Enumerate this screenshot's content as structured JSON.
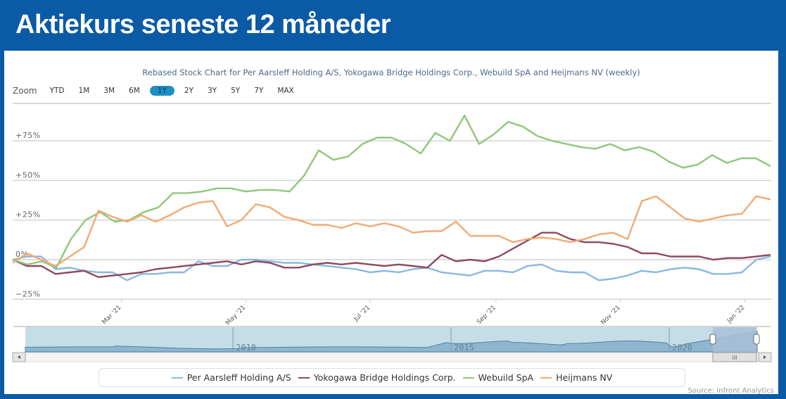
{
  "header": {
    "title": "Aktiekurs seneste 12 måneder"
  },
  "zoom": {
    "label": "Zoom",
    "buttons": [
      "YTD",
      "1M",
      "3M",
      "6M",
      "1Y",
      "2Y",
      "3Y",
      "5Y",
      "7Y",
      "MAX"
    ],
    "active": "1Y"
  },
  "colors": {
    "brand": "#0a5aa6",
    "active_zoom": "#1e8fbf",
    "per_aarsleff": "#8ab8e0",
    "yokogawa": "#8e4a5e",
    "webuild": "#8fc77a",
    "heijmans": "#f2aa73"
  },
  "chart_data": {
    "type": "line",
    "title": "Rebased Stock Chart for Per Aarsleff Holding A/S, Yokogawa Bridge Holdings Corp., Webuild SpA and Heijmans NV (weekly)",
    "xlabel": "",
    "ylabel": "",
    "ylim": [
      -25,
      100
    ],
    "yticks": [
      -25,
      0,
      25,
      50,
      75
    ],
    "ytick_labels": [
      "−25%",
      "0%",
      "+25%",
      "+50%",
      "+75%"
    ],
    "xtick_labels": [
      "Mar '21",
      "May '21",
      "Jul '21",
      "Sep '21",
      "Nov '21",
      "Jan '22"
    ],
    "xtick_weeks": [
      7.6,
      16.3,
      25.0,
      33.8,
      42.5,
      51.2
    ],
    "x_weeks": 53,
    "grid": true,
    "legend_position": "bottom",
    "series": [
      {
        "name": "Per Aarsleff Holding A/S",
        "color_key": "per_aarsleff",
        "values": [
          0,
          2,
          2,
          -6,
          -5,
          -7,
          -8,
          -8,
          -13,
          -9,
          -9,
          -8,
          -8,
          -1,
          -4,
          -4,
          0,
          0,
          -1,
          -2,
          -2,
          -3,
          -4,
          -5,
          -6,
          -8,
          -7,
          -8,
          -6,
          -5,
          -8,
          -9,
          -10,
          -7,
          -7,
          -8,
          -4,
          -3,
          -7,
          -8,
          -8,
          -13,
          -12,
          -10,
          -7,
          -8,
          -6,
          -5,
          -6,
          -9,
          -9,
          -8,
          0,
          2
        ]
      },
      {
        "name": "Yokogawa Bridge Holdings Corp.",
        "color_key": "yokogawa",
        "values": [
          0,
          -4,
          -4,
          -9,
          -8,
          -7,
          -11,
          -10,
          -9,
          -8,
          -6,
          -5,
          -4,
          -3,
          -2,
          -1,
          -3,
          -1,
          -2,
          -5,
          -5,
          -3,
          -2,
          -3,
          -2,
          -3,
          -4,
          -3,
          -4,
          -5,
          3,
          -1,
          0,
          -1,
          2,
          7,
          12,
          17,
          17,
          13,
          11,
          11,
          10,
          8,
          4,
          4,
          2,
          2,
          2,
          0,
          1,
          1,
          2,
          3
        ]
      },
      {
        "name": "Webuild SpA",
        "color_key": "webuild",
        "values": [
          0,
          -3,
          -1,
          -5,
          13,
          25,
          30,
          24,
          25,
          30,
          33,
          42,
          42,
          43,
          45,
          45,
          43,
          44,
          44,
          43,
          53,
          69,
          63,
          65,
          73,
          77,
          77,
          73,
          67,
          80,
          75,
          91,
          73,
          79,
          87,
          84,
          78,
          75,
          73,
          71,
          70,
          73,
          69,
          71,
          68,
          62,
          58,
          60,
          66,
          61,
          64,
          64,
          59
        ]
      },
      {
        "name": "Heijmans NV",
        "color_key": "heijmans",
        "values": [
          -2,
          4,
          0,
          -4,
          2,
          8,
          31,
          27,
          24,
          28,
          24,
          28,
          33,
          36,
          37,
          21,
          25,
          35,
          33,
          27,
          25,
          22,
          22,
          20,
          23,
          21,
          23,
          21,
          17,
          18,
          18,
          24,
          15,
          15,
          15,
          11,
          13,
          14,
          13,
          11,
          13,
          16,
          17,
          13,
          37,
          40,
          33,
          26,
          24,
          26,
          28,
          29,
          40,
          38
        ]
      }
    ]
  },
  "navigator": {
    "year_labels": [
      "2010",
      "2015",
      "2020"
    ],
    "scroll_thumb_label": "III"
  },
  "legend": {
    "items": [
      "Per Aarsleff Holding A/S",
      "Yokogawa Bridge Holdings Corp.",
      "Webuild SpA",
      "Heijmans NV"
    ]
  },
  "footer": {
    "source": "Source: Infront Analytics"
  }
}
